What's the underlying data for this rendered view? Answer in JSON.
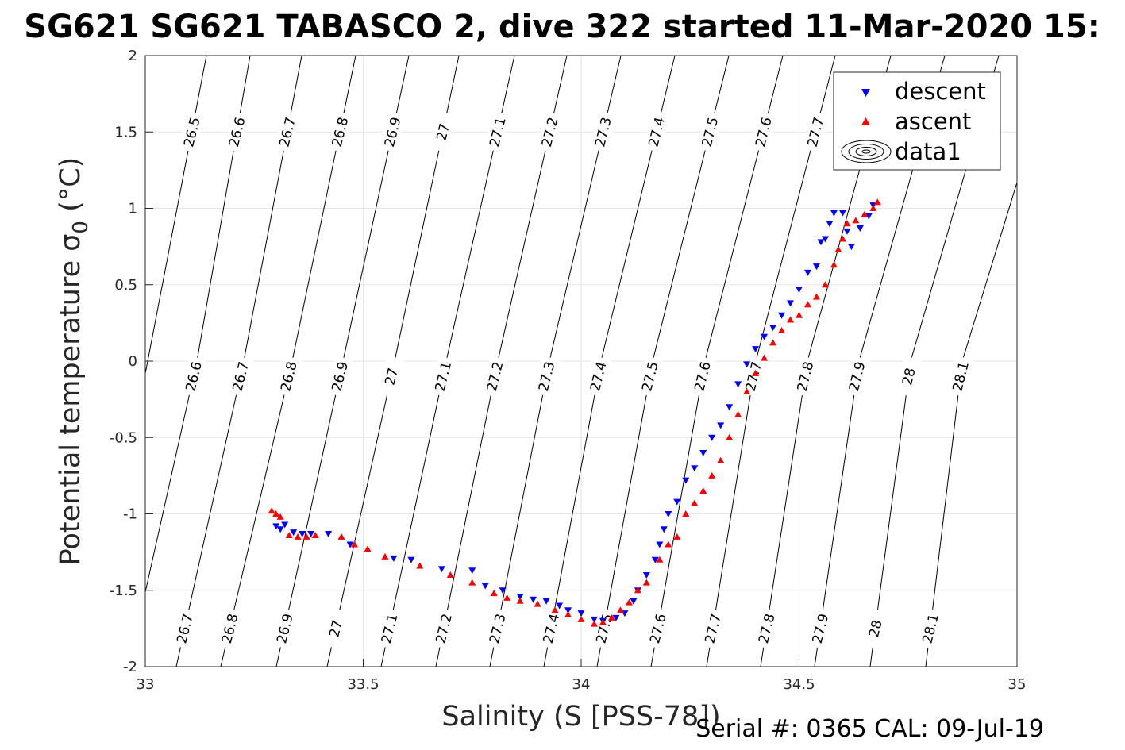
{
  "chart_data": {
    "type": "scatter",
    "title": "SG621 SG621 TABASCO 2, dive 322 started 11-Mar-2020 15:",
    "xlabel": "Salinity (S [PSS-78])",
    "ylabel_main": "Potential temperature ",
    "ylabel_sigma": "σ",
    "ylabel_sub": "0",
    "ylabel_unit": " (°C)",
    "footer": "Serial #: 0365  CAL: 09-Jul-19",
    "xlim": [
      33,
      35
    ],
    "ylim": [
      -2,
      2
    ],
    "x_ticks": [
      33,
      33.5,
      34,
      34.5,
      35
    ],
    "x_tick_labels": [
      "33",
      "33.5",
      "34",
      "34.5",
      "35"
    ],
    "y_ticks": [
      -2,
      -1.5,
      -1,
      -0.5,
      0,
      0.5,
      1,
      1.5,
      2
    ],
    "y_tick_labels": [
      "-2",
      "-1.5",
      "-1",
      "-0.5",
      "0",
      "0.5",
      "1",
      "1.5",
      "2"
    ],
    "grid": true,
    "legend_position": "top-right",
    "legend": [
      {
        "label": "descent",
        "color": "#0000ff",
        "marker": "triangle-down"
      },
      {
        "label": "ascent",
        "color": "#ff0000",
        "marker": "triangle-up"
      },
      {
        "label": "data1",
        "marker": "contour"
      }
    ],
    "contours": {
      "levels": [
        26.5,
        26.6,
        26.7,
        26.8,
        26.9,
        27,
        27.1,
        27.2,
        27.3,
        27.4,
        27.5,
        27.6,
        27.7,
        27.8,
        27.9,
        28,
        28.1
      ],
      "labels": [
        "26.5",
        "26.6",
        "26.7",
        "26.8",
        "26.9",
        "27",
        "27.1",
        "27.2",
        "27.3",
        "27.4",
        "27.5",
        "27.6",
        "27.7",
        "27.8",
        "27.9",
        "28",
        "28.1"
      ],
      "color": "#000000"
    },
    "series": [
      {
        "name": "descent",
        "color": "#0000ff",
        "marker": "triangle-down",
        "points": [
          [
            33.3,
            -1.08
          ],
          [
            33.31,
            -1.1
          ],
          [
            33.32,
            -1.07
          ],
          [
            33.34,
            -1.12
          ],
          [
            33.36,
            -1.13
          ],
          [
            33.38,
            -1.13
          ],
          [
            33.42,
            -1.13
          ],
          [
            33.47,
            -1.2
          ],
          [
            33.57,
            -1.29
          ],
          [
            33.61,
            -1.3
          ],
          [
            33.68,
            -1.36
          ],
          [
            33.75,
            -1.37
          ],
          [
            33.78,
            -1.47
          ],
          [
            33.82,
            -1.5
          ],
          [
            33.86,
            -1.54
          ],
          [
            33.89,
            -1.56
          ],
          [
            33.92,
            -1.57
          ],
          [
            33.95,
            -1.6
          ],
          [
            33.97,
            -1.63
          ],
          [
            34.0,
            -1.65
          ],
          [
            34.03,
            -1.69
          ],
          [
            34.05,
            -1.7
          ],
          [
            34.08,
            -1.68
          ],
          [
            34.1,
            -1.65
          ],
          [
            34.12,
            -1.57
          ],
          [
            34.13,
            -1.5
          ],
          [
            34.15,
            -1.4
          ],
          [
            34.17,
            -1.3
          ],
          [
            34.18,
            -1.2
          ],
          [
            34.19,
            -1.1
          ],
          [
            34.2,
            -1.0
          ],
          [
            34.22,
            -0.92
          ],
          [
            34.24,
            -0.78
          ],
          [
            34.26,
            -0.7
          ],
          [
            34.28,
            -0.6
          ],
          [
            34.3,
            -0.5
          ],
          [
            34.32,
            -0.42
          ],
          [
            34.34,
            -0.3
          ],
          [
            34.36,
            -0.15
          ],
          [
            34.38,
            -0.02
          ],
          [
            34.4,
            0.08
          ],
          [
            34.42,
            0.16
          ],
          [
            34.44,
            0.22
          ],
          [
            34.46,
            0.3
          ],
          [
            34.48,
            0.38
          ],
          [
            34.5,
            0.47
          ],
          [
            34.52,
            0.58
          ],
          [
            34.54,
            0.62
          ],
          [
            34.55,
            0.78
          ],
          [
            34.56,
            0.8
          ],
          [
            34.57,
            0.9
          ],
          [
            34.58,
            0.97
          ],
          [
            34.6,
            0.97
          ],
          [
            34.61,
            0.85
          ],
          [
            34.62,
            0.75
          ],
          [
            34.64,
            0.87
          ],
          [
            34.66,
            0.95
          ],
          [
            34.67,
            1.02
          ]
        ]
      },
      {
        "name": "ascent",
        "color": "#ff0000",
        "marker": "triangle-up",
        "points": [
          [
            33.29,
            -0.98
          ],
          [
            33.3,
            -1.0
          ],
          [
            33.31,
            -1.02
          ],
          [
            33.33,
            -1.14
          ],
          [
            33.35,
            -1.15
          ],
          [
            33.37,
            -1.15
          ],
          [
            33.39,
            -1.14
          ],
          [
            33.45,
            -1.15
          ],
          [
            33.48,
            -1.2
          ],
          [
            33.51,
            -1.23
          ],
          [
            33.55,
            -1.28
          ],
          [
            33.63,
            -1.34
          ],
          [
            33.7,
            -1.4
          ],
          [
            33.75,
            -1.45
          ],
          [
            33.8,
            -1.52
          ],
          [
            33.83,
            -1.55
          ],
          [
            33.86,
            -1.57
          ],
          [
            33.9,
            -1.59
          ],
          [
            33.94,
            -1.63
          ],
          [
            33.97,
            -1.66
          ],
          [
            34.0,
            -1.69
          ],
          [
            34.03,
            -1.72
          ],
          [
            34.05,
            -1.71
          ],
          [
            34.07,
            -1.68
          ],
          [
            34.09,
            -1.63
          ],
          [
            34.11,
            -1.58
          ],
          [
            34.13,
            -1.5
          ],
          [
            34.15,
            -1.45
          ],
          [
            34.18,
            -1.3
          ],
          [
            34.2,
            -1.2
          ],
          [
            34.22,
            -1.15
          ],
          [
            34.24,
            -1.0
          ],
          [
            34.26,
            -0.93
          ],
          [
            34.28,
            -0.85
          ],
          [
            34.3,
            -0.75
          ],
          [
            34.32,
            -0.65
          ],
          [
            34.34,
            -0.5
          ],
          [
            34.36,
            -0.35
          ],
          [
            34.38,
            -0.2
          ],
          [
            34.4,
            -0.08
          ],
          [
            34.42,
            0.02
          ],
          [
            34.44,
            0.12
          ],
          [
            34.46,
            0.2
          ],
          [
            34.48,
            0.27
          ],
          [
            34.5,
            0.3
          ],
          [
            34.52,
            0.37
          ],
          [
            34.54,
            0.42
          ],
          [
            34.56,
            0.5
          ],
          [
            34.58,
            0.63
          ],
          [
            34.59,
            0.73
          ],
          [
            34.6,
            0.8
          ],
          [
            34.61,
            0.9
          ],
          [
            34.63,
            0.92
          ],
          [
            34.65,
            0.96
          ],
          [
            34.67,
            1.0
          ],
          [
            34.68,
            1.04
          ]
        ]
      }
    ]
  }
}
